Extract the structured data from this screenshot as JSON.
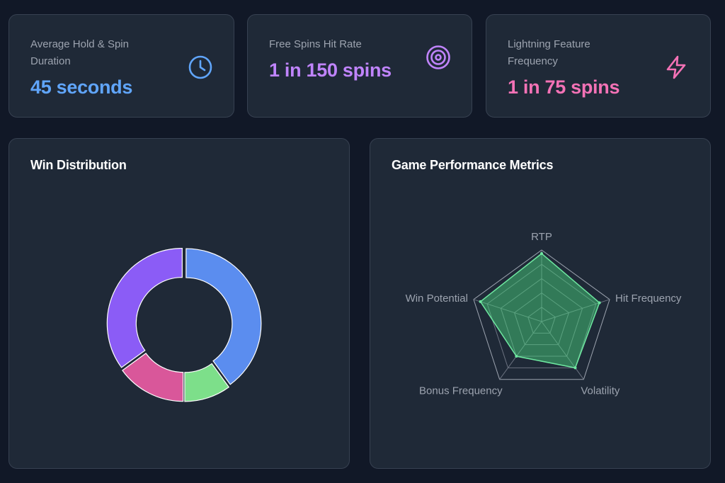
{
  "stats": [
    {
      "label": "Average Hold & Spin Duration",
      "value": "45 seconds",
      "color": "#60a5fa",
      "icon": "clock-icon"
    },
    {
      "label": "Free Spins Hit Rate",
      "value": "1 in 150 spins",
      "color": "#c084fc",
      "icon": "target-icon"
    },
    {
      "label": "Lightning Feature Frequency",
      "value": "1 in 75 spins",
      "color": "#f472b6",
      "icon": "lightning-icon"
    }
  ],
  "win_distribution": {
    "title": "Win Distribution"
  },
  "performance": {
    "title": "Game Performance Metrics"
  },
  "chart_data": [
    {
      "type": "pie",
      "title": "Win Distribution",
      "donut": true,
      "slices": [
        {
          "value": 40,
          "color": "#5b8def"
        },
        {
          "value": 10,
          "color": "#7ddf8a"
        },
        {
          "value": 15,
          "color": "#d9579a"
        },
        {
          "value": 35,
          "color": "#8b5cf6"
        }
      ]
    },
    {
      "type": "radar",
      "title": "Game Performance Metrics",
      "axes": [
        "RTP",
        "Hit Frequency",
        "Volatility",
        "Bonus Frequency",
        "Win Potential"
      ],
      "values": [
        95,
        85,
        80,
        60,
        90
      ],
      "max": 100,
      "grid_levels": 5,
      "fill_color": "#4ade80",
      "stroke_color": "#6ee7a0"
    }
  ]
}
